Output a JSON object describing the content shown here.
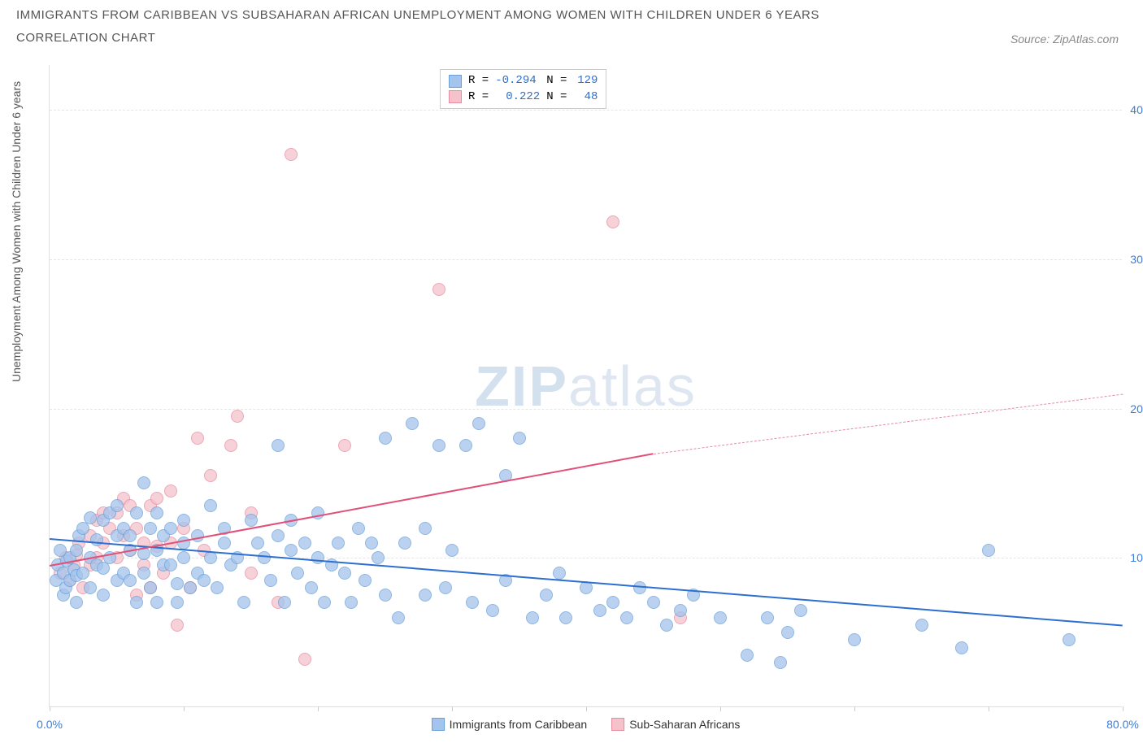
{
  "title_line1": "IMMIGRANTS FROM CARIBBEAN VS SUBSAHARAN AFRICAN UNEMPLOYMENT AMONG WOMEN WITH CHILDREN UNDER 6 YEARS",
  "title_line2": "CORRELATION CHART",
  "title_fontsize": 15,
  "title_color": "#555555",
  "source_label": "Source: ZipAtlas.com",
  "watermark_bold": "ZIP",
  "watermark_light": "atlas",
  "chart": {
    "type": "scatter",
    "background_color": "#ffffff",
    "grid_color": "#e5e5e5",
    "axis_color": "#e0e0e0",
    "tick_label_color": "#3b7dd8",
    "tick_fontsize": 14,
    "xlim": [
      0,
      80
    ],
    "ylim": [
      0,
      43
    ],
    "x_ticks": [
      0,
      10,
      20,
      30,
      40,
      50,
      60,
      70,
      80
    ],
    "x_tick_labels": {
      "0": "0.0%",
      "80": "80.0%"
    },
    "y_gridlines": [
      10,
      20,
      30,
      40
    ],
    "y_tick_labels": {
      "10": "10.0%",
      "20": "20.0%",
      "30": "30.0%",
      "40": "40.0%"
    },
    "y_axis_label": "Unemployment Among Women with Children Under 6 years",
    "y_label_fontsize": 14,
    "marker_radius": 8,
    "marker_stroke_width": 1,
    "marker_fill_opacity": 0.35
  },
  "series": {
    "caribbean": {
      "label": "Immigrants from Caribbean",
      "fill_color": "#a3c4ec",
      "stroke_color": "#6b9fd8",
      "r_value": "-0.294",
      "n_value": "129",
      "trend": {
        "x1": 0,
        "y1": 11.3,
        "x2": 80,
        "y2": 5.5,
        "color": "#2c6fd0",
        "width": 2,
        "dash": "solid"
      },
      "points": [
        [
          0.5,
          8.5
        ],
        [
          0.6,
          9.5
        ],
        [
          0.8,
          10.5
        ],
        [
          1,
          7.5
        ],
        [
          1,
          9.0
        ],
        [
          1.2,
          8.0
        ],
        [
          1.3,
          9.8
        ],
        [
          1.5,
          8.5
        ],
        [
          1.5,
          10.0
        ],
        [
          1.8,
          9.2
        ],
        [
          2,
          7.0
        ],
        [
          2,
          8.8
        ],
        [
          2,
          10.5
        ],
        [
          2.2,
          11.5
        ],
        [
          2.5,
          9.0
        ],
        [
          2.5,
          12.0
        ],
        [
          3,
          8.0
        ],
        [
          3,
          10.0
        ],
        [
          3,
          12.7
        ],
        [
          3.5,
          9.5
        ],
        [
          3.5,
          11.2
        ],
        [
          4,
          7.5
        ],
        [
          4,
          9.3
        ],
        [
          4,
          12.5
        ],
        [
          4.5,
          10.0
        ],
        [
          4.5,
          13.0
        ],
        [
          5,
          8.5
        ],
        [
          5,
          11.5
        ],
        [
          5,
          13.5
        ],
        [
          5.5,
          9.0
        ],
        [
          5.5,
          12.0
        ],
        [
          6,
          8.5
        ],
        [
          6,
          10.5
        ],
        [
          6,
          11.5
        ],
        [
          6.5,
          7.0
        ],
        [
          6.5,
          13.0
        ],
        [
          7,
          9.0
        ],
        [
          7,
          10.3
        ],
        [
          7,
          15.0
        ],
        [
          7.5,
          8.0
        ],
        [
          7.5,
          12.0
        ],
        [
          8,
          7.0
        ],
        [
          8,
          10.5
        ],
        [
          8,
          13.0
        ],
        [
          8.5,
          9.5
        ],
        [
          8.5,
          11.5
        ],
        [
          9,
          9.5
        ],
        [
          9,
          12.0
        ],
        [
          9.5,
          7.0
        ],
        [
          9.5,
          8.3
        ],
        [
          10,
          10.0
        ],
        [
          10,
          11.0
        ],
        [
          10,
          12.5
        ],
        [
          10.5,
          8.0
        ],
        [
          11,
          9.0
        ],
        [
          11,
          11.5
        ],
        [
          11.5,
          8.5
        ],
        [
          12,
          10.0
        ],
        [
          12,
          13.5
        ],
        [
          12.5,
          8.0
        ],
        [
          13,
          11.0
        ],
        [
          13,
          12.0
        ],
        [
          13.5,
          9.5
        ],
        [
          14,
          10.0
        ],
        [
          14.5,
          7.0
        ],
        [
          15,
          12.5
        ],
        [
          15.5,
          11.0
        ],
        [
          16,
          10.0
        ],
        [
          16.5,
          8.5
        ],
        [
          17,
          11.5
        ],
        [
          17,
          17.5
        ],
        [
          17.5,
          7.0
        ],
        [
          18,
          10.5
        ],
        [
          18,
          12.5
        ],
        [
          18.5,
          9.0
        ],
        [
          19,
          11.0
        ],
        [
          19.5,
          8.0
        ],
        [
          20,
          10.0
        ],
        [
          20,
          13.0
        ],
        [
          20.5,
          7.0
        ],
        [
          21,
          9.5
        ],
        [
          21.5,
          11.0
        ],
        [
          22,
          9.0
        ],
        [
          22.5,
          7.0
        ],
        [
          23,
          12.0
        ],
        [
          23.5,
          8.5
        ],
        [
          24,
          11.0
        ],
        [
          24.5,
          10.0
        ],
        [
          25,
          7.5
        ],
        [
          25,
          18.0
        ],
        [
          26,
          6.0
        ],
        [
          26.5,
          11.0
        ],
        [
          27,
          19.0
        ],
        [
          28,
          7.5
        ],
        [
          28,
          12.0
        ],
        [
          29,
          17.5
        ],
        [
          29.5,
          8.0
        ],
        [
          30,
          10.5
        ],
        [
          31,
          17.5
        ],
        [
          31.5,
          7.0
        ],
        [
          32,
          19.0
        ],
        [
          33,
          6.5
        ],
        [
          34,
          8.5
        ],
        [
          34,
          15.5
        ],
        [
          35,
          18.0
        ],
        [
          36,
          6.0
        ],
        [
          37,
          7.5
        ],
        [
          38,
          9.0
        ],
        [
          38.5,
          6.0
        ],
        [
          40,
          8.0
        ],
        [
          41,
          6.5
        ],
        [
          42,
          7.0
        ],
        [
          43,
          6.0
        ],
        [
          44,
          8.0
        ],
        [
          45,
          7.0
        ],
        [
          46,
          5.5
        ],
        [
          47,
          6.5
        ],
        [
          48,
          7.5
        ],
        [
          50,
          6.0
        ],
        [
          52,
          3.5
        ],
        [
          53.5,
          6.0
        ],
        [
          54.5,
          3.0
        ],
        [
          55,
          5.0
        ],
        [
          56,
          6.5
        ],
        [
          60,
          4.5
        ],
        [
          65,
          5.5
        ],
        [
          68,
          4.0
        ],
        [
          70,
          10.5
        ],
        [
          76,
          4.5
        ]
      ]
    },
    "subsaharan": {
      "label": "Sub-Saharan Africans",
      "fill_color": "#f5c2cc",
      "stroke_color": "#e58ca0",
      "r_value": "0.222",
      "n_value": "48",
      "trend_solid": {
        "x1": 0,
        "y1": 9.5,
        "x2": 45,
        "y2": 17.0,
        "color": "#e05078",
        "width": 2
      },
      "trend_dashed": {
        "x1": 45,
        "y1": 17.0,
        "x2": 80,
        "y2": 21.0,
        "color": "#e58ca0",
        "width": 1
      },
      "points": [
        [
          0.8,
          9.0
        ],
        [
          1.2,
          10.0
        ],
        [
          1.5,
          8.5
        ],
        [
          1.8,
          9.5
        ],
        [
          2,
          10.2
        ],
        [
          2.2,
          11.0
        ],
        [
          2.5,
          8.0
        ],
        [
          3,
          9.5
        ],
        [
          3,
          11.5
        ],
        [
          3.5,
          10.0
        ],
        [
          3.5,
          12.5
        ],
        [
          4,
          11.0
        ],
        [
          4,
          13.0
        ],
        [
          4.5,
          12.0
        ],
        [
          5,
          10.0
        ],
        [
          5,
          13.0
        ],
        [
          5.5,
          11.5
        ],
        [
          5.5,
          14.0
        ],
        [
          6,
          10.5
        ],
        [
          6,
          13.5
        ],
        [
          6.5,
          7.5
        ],
        [
          6.5,
          12.0
        ],
        [
          7,
          9.5
        ],
        [
          7,
          11.0
        ],
        [
          7.5,
          8.0
        ],
        [
          7.5,
          13.5
        ],
        [
          8,
          10.8
        ],
        [
          8,
          14.0
        ],
        [
          8.5,
          9.0
        ],
        [
          9,
          11.0
        ],
        [
          9,
          14.5
        ],
        [
          9.5,
          5.5
        ],
        [
          10,
          12.0
        ],
        [
          10.5,
          8.0
        ],
        [
          11,
          18.0
        ],
        [
          11.5,
          10.5
        ],
        [
          12,
          15.5
        ],
        [
          13.5,
          17.5
        ],
        [
          14,
          19.5
        ],
        [
          15,
          9.0
        ],
        [
          15,
          13.0
        ],
        [
          17,
          7.0
        ],
        [
          18,
          37.0
        ],
        [
          19,
          3.2
        ],
        [
          22,
          17.5
        ],
        [
          29,
          28.0
        ],
        [
          42,
          32.5
        ],
        [
          47,
          6.0
        ]
      ]
    }
  },
  "legend": {
    "r_prefix": "R = ",
    "n_prefix": "N = ",
    "value_color": "#2c6fd0"
  }
}
